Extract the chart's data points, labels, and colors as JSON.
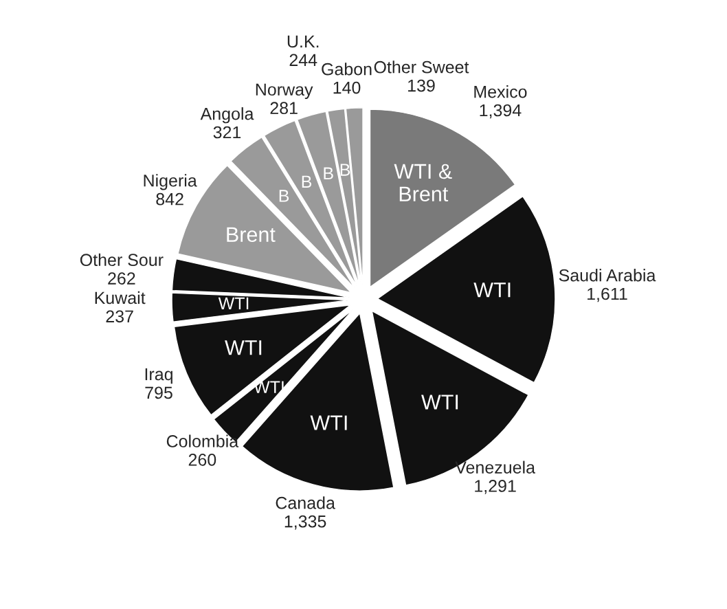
{
  "chart_data": {
    "type": "pie",
    "categories": [
      "Mexico",
      "Saudi Arabia",
      "Venezuela",
      "Canada",
      "Colombia",
      "Iraq",
      "Kuwait",
      "Other Sour",
      "Nigeria",
      "Angola",
      "Norway",
      "U.K.",
      "Gabon",
      "Other Sweet"
    ],
    "values": [
      1394,
      1611,
      1291,
      1335,
      260,
      795,
      237,
      262,
      842,
      321,
      281,
      244,
      140,
      139
    ],
    "value_labels": [
      "1,394",
      "1,611",
      "1,291",
      "1,335",
      "260",
      "795",
      "237",
      "262",
      "842",
      "321",
      "281",
      "244",
      "140",
      "139"
    ],
    "colors": [
      "#7a7a7a",
      "#111111",
      "#111111",
      "#111111",
      "#111111",
      "#111111",
      "#111111",
      "#111111",
      "#9a9a9a",
      "#9a9a9a",
      "#9a9a9a",
      "#9a9a9a",
      "#9a9a9a",
      "#9a9a9a"
    ],
    "annotations": [
      {
        "text": "WTI &\nBrent",
        "x": "Mexico"
      },
      {
        "text": "WTI",
        "x": "Saudi Arabia"
      },
      {
        "text": "WTI",
        "x": "Venezuela"
      },
      {
        "text": "WTI",
        "x": "Canada"
      },
      {
        "text": "WTI",
        "x": "Colombia"
      },
      {
        "text": "WTI",
        "x": "Iraq"
      },
      {
        "text": "WTI",
        "x": "Kuwait"
      },
      {
        "text": "Brent",
        "x": "Nigeria"
      },
      {
        "text": "B",
        "x": "Angola"
      },
      {
        "text": "B",
        "x": "Norway"
      },
      {
        "text": "B",
        "x": "U.K."
      },
      {
        "text": "B",
        "x": "Gabon"
      }
    ]
  }
}
